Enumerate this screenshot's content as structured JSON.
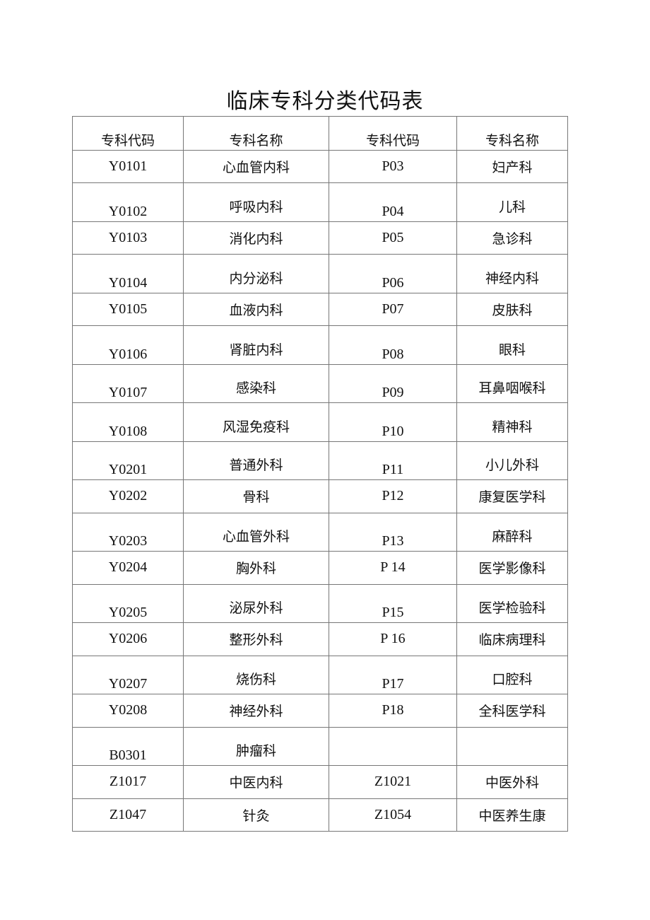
{
  "title": "临床专科分类代码表",
  "table": {
    "headers": [
      "专科代码",
      "专科名称",
      "专科代码",
      "专科名称"
    ],
    "rows": [
      [
        "Y0101",
        "心血管内科",
        "P03",
        "妇产科"
      ],
      [
        "Y0102",
        "呼吸内科",
        "P04",
        "儿科"
      ],
      [
        "Y0103",
        "消化内科",
        "P05",
        "急诊科"
      ],
      [
        "Y0104",
        "内分泌科",
        "P06",
        "神经内科"
      ],
      [
        "Y0105",
        "血液内科",
        "P07",
        "皮肤科"
      ],
      [
        "Y0106",
        "肾脏内科",
        "P08",
        "眼科"
      ],
      [
        "Y0107",
        "感染科",
        "P09",
        "耳鼻咽喉科"
      ],
      [
        "Y0108",
        "风湿免疫科",
        "P10",
        "精神科"
      ],
      [
        "Y0201",
        "普通外科",
        "P11",
        "小儿外科"
      ],
      [
        "Y0202",
        "骨科",
        "P12",
        "康复医学科"
      ],
      [
        "Y0203",
        "心血管外科",
        "P13",
        "麻醉科"
      ],
      [
        "Y0204",
        "胸外科",
        "P 14",
        "医学影像科"
      ],
      [
        "Y0205",
        "泌尿外科",
        "P15",
        "医学检验科"
      ],
      [
        "Y0206",
        "整形外科",
        "P 16",
        "临床病理科"
      ],
      [
        "Y0207",
        "烧伤科",
        "P17",
        "口腔科"
      ],
      [
        "Y0208",
        "神经外科",
        "P18",
        "全科医学科"
      ],
      [
        "B0301",
        "肿瘤科",
        "",
        ""
      ],
      [
        "Z1017",
        "中医内科",
        "Z1021",
        "中医外科"
      ],
      [
        "Z1047",
        "针灸",
        "Z1054",
        "中医养生康"
      ]
    ]
  }
}
